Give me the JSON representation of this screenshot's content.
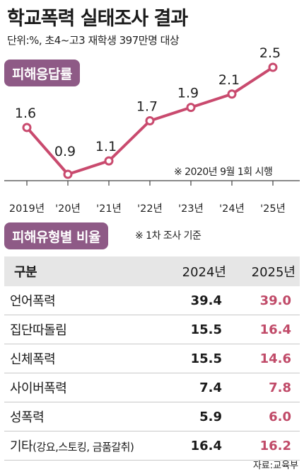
{
  "header": {
    "title": "학교폭력 실태조사 결과",
    "subtitle": "단위:%, 초4~고3 재학생 397만명 대상"
  },
  "section1": {
    "label": "피해응답률",
    "note": "※ 2020년 9월 1회 시행"
  },
  "section2": {
    "label": "피해유형별 비율",
    "note": "※ 1차 조사 기준"
  },
  "chart_data": {
    "type": "line",
    "title": "피해응답률",
    "categories": [
      "2019년",
      "'20년",
      "'21년",
      "'22년",
      "'23년",
      "'24년",
      "'25년"
    ],
    "values": [
      1.6,
      0.9,
      1.1,
      1.7,
      1.9,
      2.1,
      2.5
    ],
    "value_labels": [
      "1.6",
      "0.9",
      "1.1",
      "1.7",
      "1.9",
      "2.1",
      "2.5"
    ],
    "unit": "%",
    "line_color": "#c94a6e",
    "grid": false
  },
  "table": {
    "headers": [
      "구분",
      "2024년",
      "2025년"
    ],
    "rows": [
      {
        "type": "언어폭력",
        "y2024": "39.4",
        "y2025": "39.0"
      },
      {
        "type": "집단따돌림",
        "y2024": "15.5",
        "y2025": "16.4"
      },
      {
        "type": "신체폭력",
        "y2024": "15.5",
        "y2025": "14.6"
      },
      {
        "type": "사이버폭력",
        "y2024": "7.4",
        "y2025": "7.8"
      },
      {
        "type": "성폭력",
        "y2024": "5.9",
        "y2025": "6.0"
      },
      {
        "type": "기타",
        "type_sub": "(강요,스토킹, 금품갈취)",
        "y2024": "16.4",
        "y2025": "16.2"
      }
    ]
  },
  "footer": {
    "source": "자료:교육부"
  },
  "colors": {
    "accent_pill": "#8e5a86",
    "line": "#c94a6e",
    "highlight_value": "#c04a68",
    "header_bg": "#e6e6e6"
  }
}
